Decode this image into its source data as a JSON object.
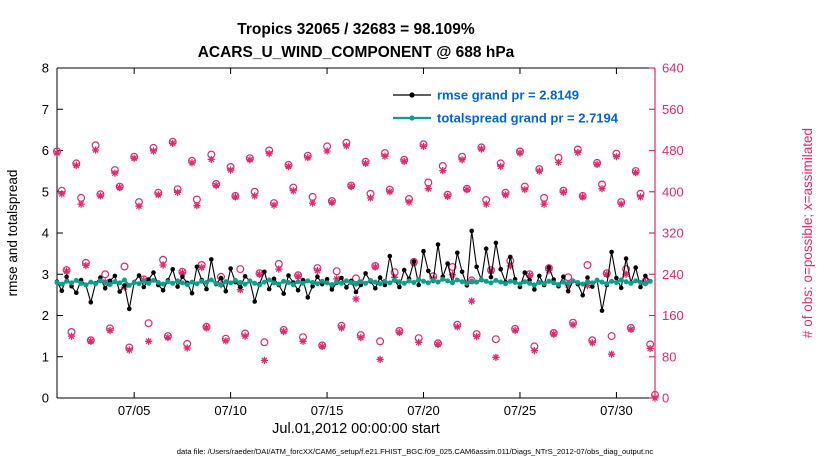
{
  "figure": {
    "title_line1": "Tropics 32065 / 32683 = 98.109%",
    "title_line2": "ACARS_U_WIND_COMPONENT @ 688 hPa",
    "xlabel": "Jul.01,2012 00:00:00 start",
    "ylabel_left": "rmse and totalspread",
    "ylabel_right": "# of obs: o=possible; x=assimilated",
    "caption": "data file: /Users/raeder/DAI/ATM_forcXX/CAM6_setup/f.e21.FHIST_BGC.f09_025.CAM6assim.011/Diags_NTrS_2012-07/obs_diag_output.nc",
    "legend": [
      {
        "label": "rmse grand pr = 2.8149",
        "series": "rmse"
      },
      {
        "label": "totalspread grand pr = 2.7194",
        "series": "totalspread"
      }
    ],
    "colors": {
      "obs": "#e0296f",
      "rmse": "#000000",
      "totalspread": "#0f9e8c",
      "legend_text": "#0066d6",
      "axis": "#000000"
    }
  },
  "chart_data": {
    "type": "line",
    "title": "Tropics 32065 / 32683 = 98.109% | ACARS_U_WIND_COMPONENT @ 688 hPa",
    "x_start_day": 1,
    "x_step_days": 0.25,
    "xlim": [
      1,
      32
    ],
    "ylim_left": [
      0,
      8
    ],
    "ylim_right": [
      0,
      640
    ],
    "grid": false,
    "legend_position": "upper-center-inside",
    "xticks": {
      "positions": [
        5,
        10,
        15,
        20,
        25,
        30
      ],
      "labels": [
        "07/05",
        "07/10",
        "07/15",
        "07/20",
        "07/25",
        "07/30"
      ]
    },
    "yticks_left": [
      0,
      1,
      2,
      3,
      4,
      5,
      6,
      7,
      8
    ],
    "yticks_right": [
      0,
      80,
      160,
      240,
      320,
      400,
      480,
      560,
      640
    ],
    "series": [
      {
        "name": "rmse",
        "axis": "left",
        "style": "line+dot",
        "grand_mean": 2.8149,
        "values": [
          2.82,
          2.6,
          2.94,
          2.71,
          2.55,
          2.86,
          2.74,
          2.32,
          2.78,
          2.92,
          2.66,
          2.84,
          2.96,
          2.58,
          2.73,
          2.16,
          2.81,
          2.97,
          2.69,
          2.87,
          3.04,
          2.74,
          2.61,
          2.85,
          3.12,
          2.7,
          2.94,
          2.79,
          2.54,
          3.18,
          2.86,
          2.64,
          3.36,
          2.76,
          2.91,
          2.59,
          3.14,
          2.81,
          2.69,
          2.95,
          2.84,
          2.34,
          2.76,
          3.06,
          2.64,
          2.89,
          2.74,
          2.53,
          2.97,
          2.8,
          2.61,
          2.86,
          2.44,
          2.71,
          2.94,
          2.76,
          2.88,
          2.63,
          2.79,
          2.91,
          2.68,
          2.84,
          2.57,
          2.74,
          3.02,
          2.83,
          2.66,
          2.92,
          2.74,
          3.44,
          2.85,
          2.69,
          3.1,
          2.89,
          3.31,
          2.74,
          3.56,
          3.08,
          2.84,
          3.72,
          2.94,
          3.26,
          2.79,
          3.52,
          3.06,
          2.73,
          4.05,
          3.18,
          2.86,
          3.62,
          2.93,
          3.76,
          3.12,
          2.81,
          3.42,
          2.88,
          2.69,
          3.04,
          2.86,
          2.63,
          2.96,
          2.74,
          3.16,
          2.87,
          2.71,
          2.94,
          2.59,
          2.84,
          2.76,
          2.49,
          2.92,
          2.7,
          2.86,
          2.12,
          2.74,
          3.54,
          2.91,
          2.67,
          3.38,
          2.79,
          3.16,
          2.69,
          2.96,
          2.83,
          null
        ]
      },
      {
        "name": "totalspread",
        "axis": "left",
        "style": "line+dot",
        "grand_mean": 2.7194,
        "values": [
          2.8,
          2.76,
          2.83,
          2.79,
          2.85,
          2.78,
          2.74,
          2.81,
          2.77,
          2.84,
          2.8,
          2.75,
          2.82,
          2.79,
          2.86,
          2.73,
          2.8,
          2.77,
          2.83,
          2.78,
          2.85,
          2.8,
          2.76,
          2.82,
          2.78,
          2.84,
          2.79,
          2.75,
          2.81,
          2.77,
          2.83,
          2.8,
          2.86,
          2.78,
          2.74,
          2.82,
          2.79,
          2.85,
          2.8,
          2.76,
          2.83,
          2.78,
          2.74,
          2.81,
          2.86,
          2.79,
          2.76,
          2.83,
          2.8,
          2.75,
          2.82,
          2.78,
          2.84,
          2.8,
          2.77,
          2.83,
          2.79,
          2.75,
          2.81,
          2.78,
          2.84,
          2.8,
          2.76,
          2.82,
          2.78,
          2.85,
          2.81,
          2.77,
          2.83,
          2.79,
          2.86,
          2.82,
          2.78,
          2.84,
          2.8,
          2.87,
          2.83,
          2.79,
          2.85,
          2.81,
          2.88,
          2.84,
          2.8,
          2.86,
          2.82,
          2.78,
          2.84,
          2.81,
          2.87,
          2.83,
          2.79,
          2.85,
          2.81,
          2.77,
          2.83,
          2.8,
          2.76,
          2.82,
          2.78,
          2.74,
          2.8,
          2.77,
          2.83,
          2.79,
          2.75,
          2.81,
          2.78,
          2.84,
          2.8,
          2.76,
          2.82,
          2.79,
          2.85,
          2.81,
          2.77,
          2.83,
          2.8,
          2.86,
          2.82,
          2.78,
          2.84,
          2.8,
          2.77,
          2.83,
          null
        ]
      },
      {
        "name": "possible",
        "axis": "right",
        "style": "scatter",
        "marker": "circle",
        "total": 32683,
        "values": [
          478,
          402,
          248,
          128,
          455,
          388,
          262,
          112,
          490,
          395,
          240,
          135,
          442,
          410,
          255,
          98,
          468,
          380,
          230,
          145,
          485,
          398,
          268,
          120,
          497,
          405,
          245,
          105,
          460,
          385,
          258,
          138,
          472,
          415,
          235,
          115,
          448,
          392,
          250,
          125,
          465,
          400,
          242,
          108,
          480,
          378,
          260,
          132,
          452,
          408,
          238,
          118,
          470,
          390,
          252,
          102,
          488,
          382,
          246,
          140,
          495,
          412,
          232,
          122,
          458,
          396,
          256,
          110,
          475,
          404,
          244,
          130,
          462,
          386,
          264,
          116,
          492,
          418,
          236,
          106,
          450,
          394,
          254,
          142,
          468,
          406,
          228,
          124,
          486,
          384,
          248,
          114,
          455,
          398,
          266,
          134,
          478,
          410,
          240,
          100,
          444,
          388,
          252,
          126,
          466,
          402,
          234,
          146,
          482,
          392,
          258,
          112,
          456,
          414,
          242,
          120,
          474,
          380,
          250,
          136,
          440,
          396,
          226,
          104,
          6
        ]
      },
      {
        "name": "assimilated",
        "axis": "right",
        "style": "scatter",
        "marker": "asterisk",
        "total": 32065,
        "values": [
          475,
          396,
          246,
          120,
          451,
          376,
          257,
          110,
          481,
          392,
          225,
          131,
          436,
          408,
          215,
          93,
          465,
          372,
          228,
          110,
          479,
          394,
          258,
          117,
          494,
          399,
          243,
          97,
          456,
          373,
          253,
          136,
          463,
          412,
          220,
          111,
          442,
          390,
          210,
          120,
          462,
          392,
          240,
          73,
          474,
          374,
          250,
          129,
          449,
          402,
          236,
          110,
          466,
          378,
          247,
          100,
          479,
          379,
          231,
          136,
          489,
          410,
          192,
          117,
          455,
          388,
          254,
          75,
          469,
          400,
          234,
          127,
          459,
          380,
          262,
          108,
          488,
          406,
          231,
          104,
          441,
          391,
          239,
          138,
          462,
          404,
          188,
          119,
          483,
          376,
          246,
          79,
          449,
          394,
          256,
          131,
          475,
          404,
          238,
          92,
          440,
          376,
          247,
          124,
          457,
          399,
          219,
          142,
          476,
          390,
          218,
          107,
          453,
          406,
          240,
          85,
          468,
          376,
          240,
          133,
          437,
          390,
          224,
          96,
          0
        ]
      }
    ]
  }
}
